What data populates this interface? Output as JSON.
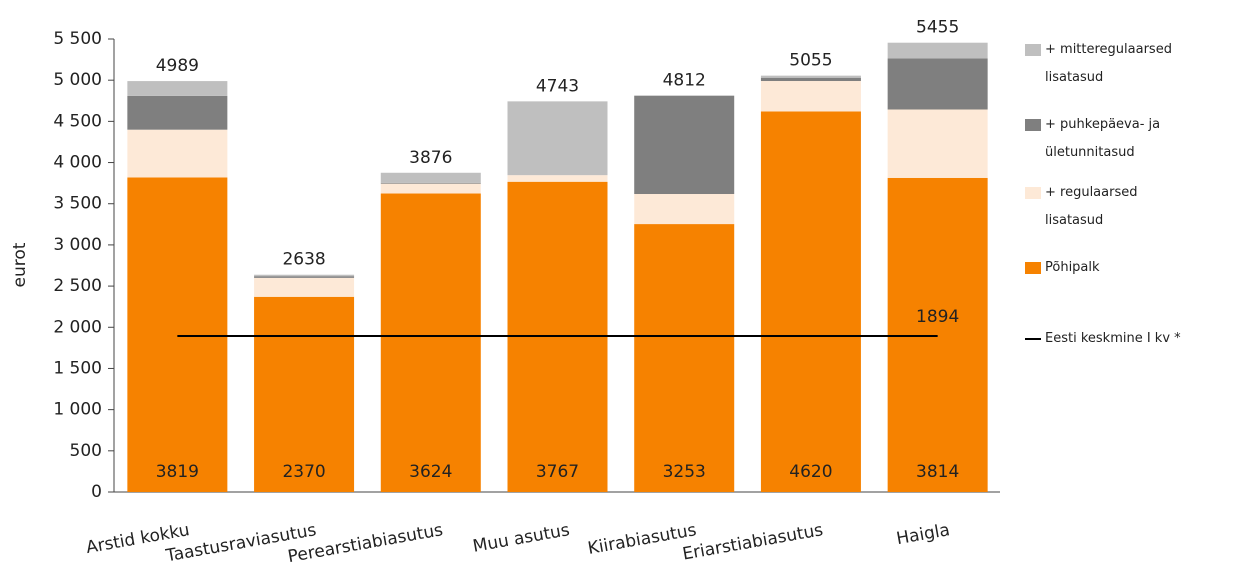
{
  "chart_data": {
    "type": "stacked_bar",
    "y_label": "eurot",
    "categories": [
      "Arstid kokku",
      "Taastusraviasutus",
      "Perearstiabiasutus",
      "Muu asutus",
      "Kiirabiasutus",
      "Eriarstiabiasutus",
      "Haigla"
    ],
    "series": [
      {
        "name": "Põhipalk",
        "color": "#f68200",
        "values": [
          3819,
          2370,
          3624,
          3767,
          3253,
          4620,
          3814
        ]
      },
      {
        "name": "+ regulaarsed lisatasud",
        "color": "#fde9d7",
        "values": [
          580,
          230,
          120,
          80,
          365,
          370,
          830
        ]
      },
      {
        "name": "+ puhkepäeva- ja ületunnitasud",
        "color": "#7f7f7f",
        "values": [
          410,
          20,
          10,
          0,
          1194,
          40,
          620
        ]
      },
      {
        "name": "+ mitteregulaarsed lisatasud",
        "color": "#bfbfbf",
        "values": [
          180,
          18,
          122,
          896,
          0,
          25,
          191
        ]
      }
    ],
    "totals": [
      4989,
      2638,
      3876,
      4743,
      4812,
      5055,
      5455
    ],
    "line": {
      "name": "Eesti keskmine I kv *",
      "color": "#000000",
      "value": 1894
    },
    "ylim": [
      0,
      5500
    ],
    "yticks": [
      0,
      500,
      {
        "value": 1000,
        "label": "1 000"
      },
      {
        "value": 1500,
        "label": "1 500"
      },
      {
        "value": 2000,
        "label": "2 000"
      },
      {
        "value": 2500,
        "label": "2 500"
      },
      {
        "value": 3000,
        "label": "3 000"
      },
      {
        "value": 3500,
        "label": "3 500"
      },
      {
        "value": 4000,
        "label": "4 000"
      },
      {
        "value": 4500,
        "label": "4 500"
      },
      {
        "value": 5000,
        "label": "5 000"
      },
      {
        "value": 5500,
        "label": "5 500"
      }
    ]
  }
}
